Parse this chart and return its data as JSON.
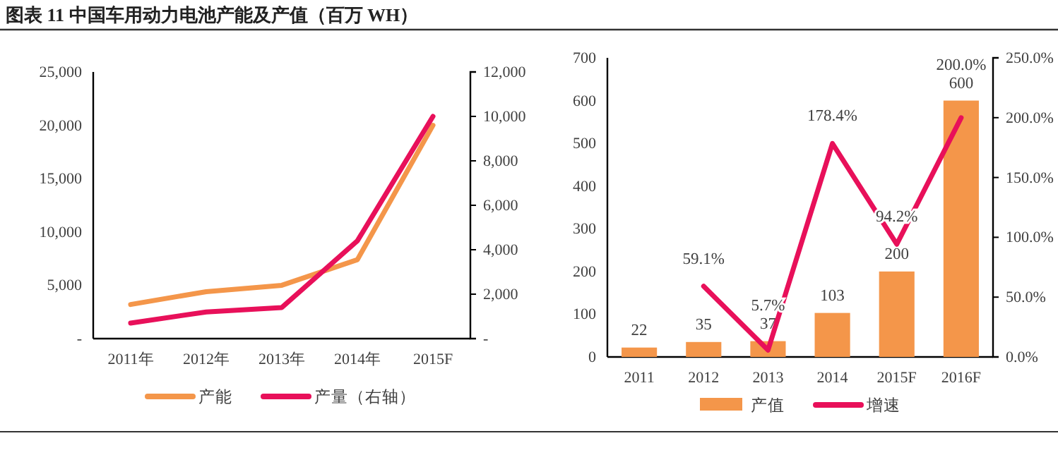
{
  "chart_data": [
    {
      "type": "line",
      "title": "图表 11  中国车用动力电池产能及产值（百万 WH）",
      "categories": [
        "2011年",
        "2012年",
        "2013年",
        "2014年",
        "2015F"
      ],
      "series": [
        {
          "name": "产能",
          "color": "#f4964a",
          "values": [
            3200,
            4400,
            5000,
            7400,
            20000
          ]
        },
        {
          "name": "产量（右轴）",
          "axis": "y2",
          "color": "#e8105a",
          "values": [
            700,
            1200,
            1400,
            4400,
            10000
          ]
        }
      ],
      "ylim": [
        0,
        25000
      ],
      "yticks": [
        {
          "value": 0,
          "label": "-"
        },
        {
          "value": 5000,
          "label": "5,000"
        },
        {
          "value": 10000,
          "label": "10,000"
        },
        {
          "value": 15000,
          "label": "15,000"
        },
        {
          "value": 20000,
          "label": "20,000"
        },
        {
          "value": 25000,
          "label": "25,000"
        }
      ],
      "y2lim": [
        0,
        12000
      ],
      "y2ticks": [
        {
          "value": 0,
          "label": "-"
        },
        {
          "value": 2000,
          "label": "2,000"
        },
        {
          "value": 4000,
          "label": "4,000"
        },
        {
          "value": 6000,
          "label": "6,000"
        },
        {
          "value": 8000,
          "label": "8,000"
        },
        {
          "value": 10000,
          "label": "10,000"
        },
        {
          "value": 12000,
          "label": "12,000"
        }
      ],
      "legend": "bottom",
      "grid": false
    },
    {
      "type": "bar",
      "categories": [
        "2011",
        "2012",
        "2013",
        "2014",
        "2015F",
        "2016F"
      ],
      "series": [
        {
          "name": "产值",
          "color": "#f4964a",
          "values": [
            22,
            35,
            37,
            103,
            200,
            600
          ],
          "value_labels": [
            "22",
            "35",
            "37",
            "103",
            "200",
            "600"
          ]
        },
        {
          "name": "增速",
          "type": "line",
          "axis": "y2",
          "color": "#e8105a",
          "values": [
            null,
            59.1,
            5.7,
            178.4,
            94.2,
            200.0
          ],
          "value_labels": [
            null,
            "59.1%",
            "5.7%",
            "178.4%",
            "94.2%",
            "200.0%"
          ]
        }
      ],
      "ylim": [
        0,
        700
      ],
      "yticks": [
        0,
        100,
        200,
        300,
        400,
        500,
        600,
        700
      ],
      "y2lim": [
        0,
        250
      ],
      "y2ticks": [
        {
          "value": 0,
          "label": "0.0%"
        },
        {
          "value": 50,
          "label": "50.0%"
        },
        {
          "value": 100,
          "label": "100.0%"
        },
        {
          "value": 150,
          "label": "150.0%"
        },
        {
          "value": 200,
          "label": "200.0%"
        },
        {
          "value": 250,
          "label": "250.0%"
        }
      ],
      "legend": "bottom",
      "grid": false
    }
  ]
}
